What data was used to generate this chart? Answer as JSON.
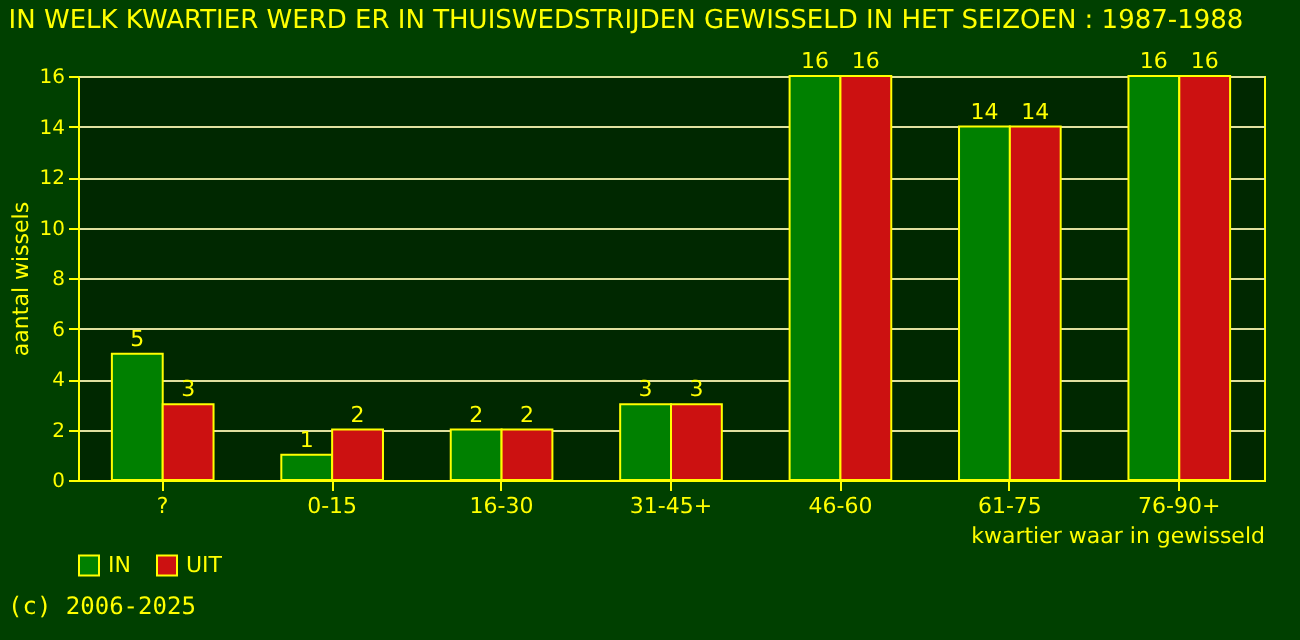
{
  "chart_data": {
    "type": "bar",
    "title": "IN WELK KWARTIER WERD ER IN THUISWEDSTRIJDEN GEWISSELD IN HET SEIZOEN : 1987-1988",
    "xlabel": "kwartier waar in gewisseld",
    "ylabel": "aantal wissels",
    "categories": [
      "?",
      "0-15",
      "16-30",
      "31-45+",
      "46-60",
      "61-75",
      "76-90+"
    ],
    "series": [
      {
        "name": "IN",
        "color": "#008000",
        "values": [
          5,
          1,
          2,
          3,
          16,
          14,
          16
        ]
      },
      {
        "name": "UIT",
        "color": "#cc1111",
        "values": [
          3,
          2,
          2,
          3,
          16,
          14,
          16
        ]
      }
    ],
    "ylim": [
      0,
      16
    ],
    "yticks": [
      0,
      2,
      4,
      6,
      8,
      10,
      12,
      14,
      16
    ],
    "grid": "y",
    "legend": "bottom",
    "data_labels": true,
    "annotations": [
      "(c) 2006-2025"
    ]
  }
}
